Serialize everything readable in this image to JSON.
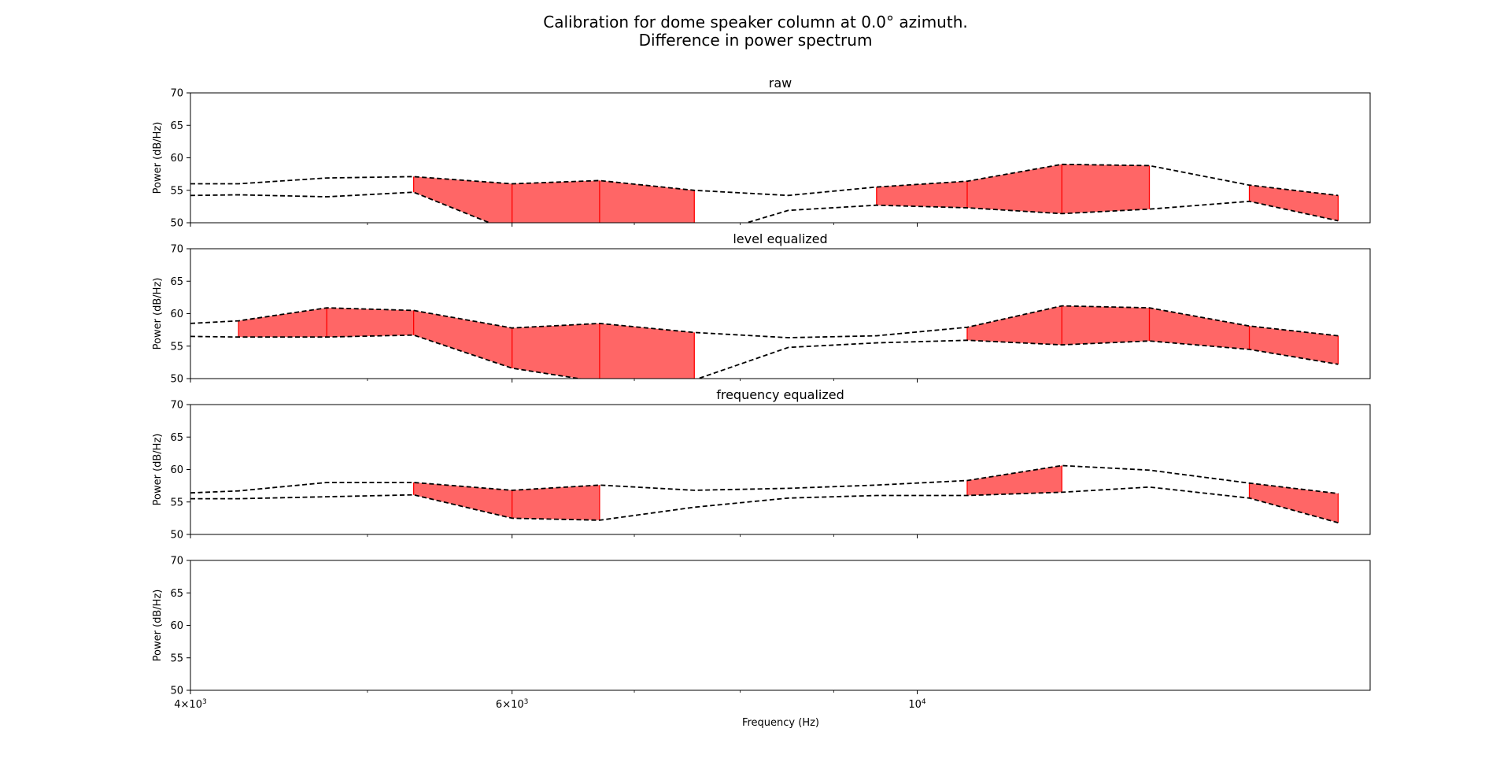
{
  "figure": {
    "title_line1": "Calibration for dome speaker column at 0.0° azimuth.",
    "title_line2": "Difference in power spectrum",
    "xlabel": "Frequency (Hz)"
  },
  "chart_data": {
    "type": "line",
    "x_scale": "log",
    "xlim": [
      4000,
      17700
    ],
    "x_ticks": [
      {
        "value": 4000,
        "mant": "4",
        "times": "×",
        "base": "10",
        "exp": "3"
      },
      {
        "value": 6000,
        "mant": "6",
        "times": "×",
        "base": "10",
        "exp": "3"
      },
      {
        "value": 10000,
        "mant": "",
        "times": "",
        "base": "10",
        "exp": "4"
      }
    ],
    "x_minor_ticks": [
      5000,
      7000,
      8000,
      9000,
      20000
    ],
    "colors": {
      "line": "#000000",
      "fill": "#ff6666",
      "fill_edge": "#ff0000"
    },
    "freqs": [
      4000,
      4250,
      4750,
      5300,
      6000,
      6700,
      7550,
      8500,
      9500,
      10650,
      12000,
      13400,
      15200,
      17000
    ],
    "panels": [
      {
        "title": "raw",
        "ylabel": "Power (dB/Hz)",
        "ylim": [
          50,
          70
        ],
        "yticks": [
          50,
          55,
          60,
          65,
          70
        ],
        "series": [
          {
            "values": [
              56.0,
              56.0,
              56.9,
              57.1,
              56.0,
              56.5,
              55.0,
              54.2,
              55.5,
              56.4,
              59.0,
              58.8,
              55.8,
              54.2
            ]
          },
          {
            "values": [
              54.2,
              54.3,
              54.0,
              54.7,
              48.6,
              48.4,
              47.6,
              51.9,
              52.7,
              52.3,
              51.4,
              52.1,
              53.3,
              50.3
            ]
          }
        ],
        "highlighted_intervals": [
          [
            3,
            6
          ],
          [
            8,
            11
          ],
          [
            12,
            13
          ]
        ]
      },
      {
        "title": "level equalized",
        "ylabel": "Power (dB/Hz)",
        "ylim": [
          50,
          70
        ],
        "yticks": [
          50,
          55,
          60,
          65,
          70
        ],
        "series": [
          {
            "values": [
              58.5,
              58.9,
              60.9,
              60.5,
              57.8,
              58.5,
              57.1,
              56.3,
              56.6,
              57.9,
              61.2,
              60.9,
              58.1,
              56.6
            ]
          },
          {
            "values": [
              56.5,
              56.4,
              56.4,
              56.7,
              51.6,
              49.5,
              49.8,
              54.8,
              55.5,
              55.9,
              55.2,
              55.8,
              54.5,
              52.2
            ]
          }
        ],
        "highlighted_intervals": [
          [
            1,
            6
          ],
          [
            9,
            13
          ]
        ]
      },
      {
        "title": "frequency equalized",
        "ylabel": "Power (dB/Hz)",
        "ylim": [
          50,
          70
        ],
        "yticks": [
          50,
          55,
          60,
          65,
          70
        ],
        "series": [
          {
            "values": [
              56.4,
              56.7,
              58.0,
              58.0,
              56.8,
              57.6,
              56.8,
              57.1,
              57.6,
              58.3,
              60.6,
              59.9,
              57.9,
              56.3
            ]
          },
          {
            "values": [
              55.5,
              55.5,
              55.8,
              56.1,
              52.5,
              52.2,
              54.2,
              55.6,
              56.0,
              56.0,
              56.5,
              57.3,
              55.6,
              51.8
            ]
          }
        ],
        "highlighted_intervals": [
          [
            3,
            5
          ],
          [
            9,
            10
          ],
          [
            12,
            13
          ]
        ]
      },
      {
        "title": "",
        "ylabel": "Power (dB/Hz)",
        "ylim": [
          50,
          70
        ],
        "yticks": [
          50,
          55,
          60,
          65,
          70
        ],
        "series": [],
        "highlighted_intervals": []
      }
    ]
  }
}
